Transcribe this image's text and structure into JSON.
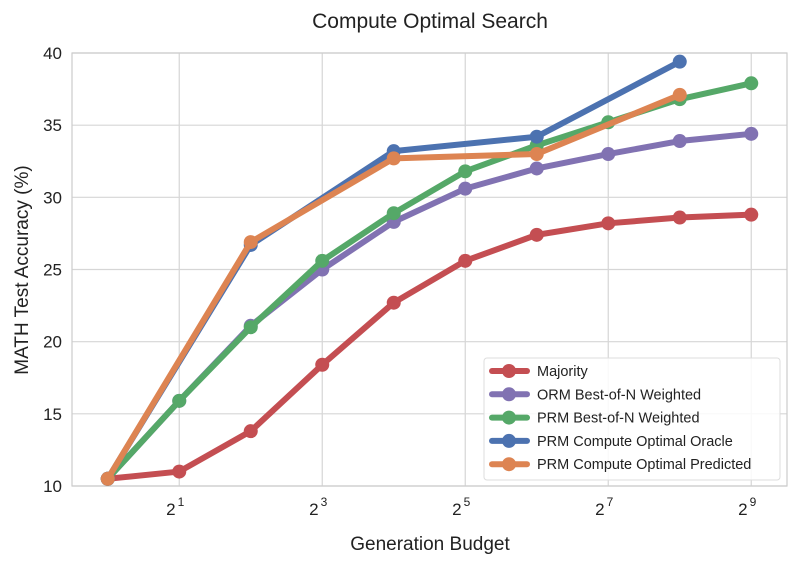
{
  "chart_data": {
    "type": "line",
    "title": "Compute Optimal Search",
    "xlabel": "Generation Budget",
    "ylabel": "MATH Test Accuracy (%)",
    "xscale": "log2",
    "xlim_log2": [
      -0.5,
      9.5
    ],
    "ylim": [
      10,
      40
    ],
    "grid": true,
    "legend_position": "bottom-right",
    "xticks": [
      {
        "base": "2",
        "exp": "1",
        "value": 2
      },
      {
        "base": "2",
        "exp": "3",
        "value": 8
      },
      {
        "base": "2",
        "exp": "5",
        "value": 32
      },
      {
        "base": "2",
        "exp": "7",
        "value": 128
      },
      {
        "base": "2",
        "exp": "9",
        "value": 512
      }
    ],
    "yticks": [
      "10",
      "15",
      "20",
      "25",
      "30",
      "35",
      "40"
    ],
    "series": [
      {
        "name": "Majority",
        "color": "#c44e52",
        "x": [
          1,
          2,
          4,
          8,
          16,
          32,
          64,
          128,
          256,
          512
        ],
        "values": [
          10.5,
          11.0,
          13.8,
          18.4,
          22.7,
          25.6,
          27.4,
          28.2,
          28.6,
          28.8
        ]
      },
      {
        "name": "ORM Best-of-N Weighted",
        "color": "#8172b2",
        "x": [
          1,
          2,
          4,
          8,
          16,
          32,
          64,
          128,
          256,
          512
        ],
        "values": [
          10.5,
          15.9,
          21.1,
          25.0,
          28.3,
          30.6,
          32.0,
          33.0,
          33.9,
          34.4
        ]
      },
      {
        "name": "PRM Best-of-N Weighted",
        "color": "#55a868",
        "x": [
          1,
          2,
          4,
          8,
          16,
          32,
          64,
          128,
          256,
          512
        ],
        "values": [
          10.5,
          15.9,
          21.0,
          25.6,
          28.9,
          31.8,
          33.6,
          35.2,
          36.8,
          37.9
        ]
      },
      {
        "name": "PRM Compute Optimal Oracle",
        "color": "#4c72b0",
        "x": [
          1,
          4,
          16,
          64,
          256
        ],
        "values": [
          10.5,
          26.7,
          33.2,
          34.2,
          39.4
        ]
      },
      {
        "name": "PRM Compute Optimal Predicted",
        "color": "#dd8452",
        "x": [
          1,
          4,
          16,
          64,
          256
        ],
        "values": [
          10.5,
          26.9,
          32.7,
          33.0,
          37.1
        ]
      }
    ]
  }
}
